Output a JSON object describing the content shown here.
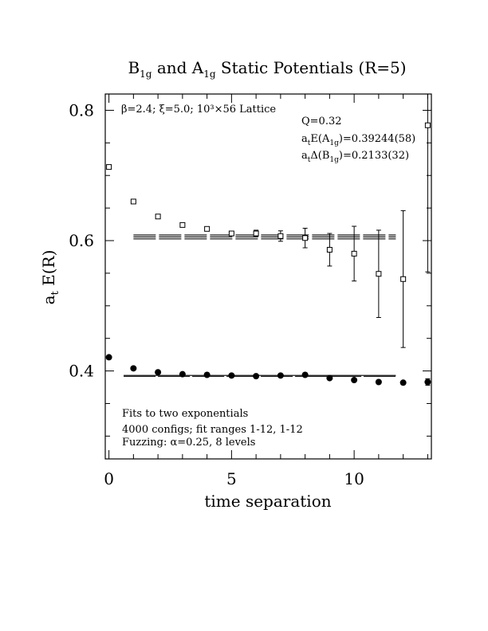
{
  "chart_data": {
    "type": "scatter",
    "title": {
      "part1": "B",
      "sub1": "1g",
      "part2": " and A",
      "sub2": "1g",
      "part3": " Static Potentials (R=5)"
    },
    "xlabel": "time separation",
    "ylabel": {
      "main": "a",
      "sub": "t",
      "rest": " E(R)"
    },
    "xlim": [
      -0.15,
      13.15
    ],
    "ylim": [
      0.265,
      0.825
    ],
    "x_ticks": [
      0,
      5,
      10
    ],
    "y_ticks": [
      0.4,
      0.6,
      0.8
    ],
    "x_tick_labels": [
      "0",
      "5",
      "10"
    ],
    "y_tick_labels": [
      "0.4",
      "0.6",
      "0.8"
    ],
    "series": [
      {
        "marker": "open-square",
        "points": [
          {
            "x": 0,
            "y": 0.713,
            "err": 0.002
          },
          {
            "x": 1,
            "y": 0.66,
            "err": 0.002
          },
          {
            "x": 2,
            "y": 0.637,
            "err": 0.002
          },
          {
            "x": 3,
            "y": 0.624,
            "err": 0.002
          },
          {
            "x": 4,
            "y": 0.618,
            "err": 0.003
          },
          {
            "x": 5,
            "y": 0.611,
            "err": 0.003
          },
          {
            "x": 6,
            "y": 0.611,
            "err": 0.005
          },
          {
            "x": 7,
            "y": 0.607,
            "err": 0.008
          },
          {
            "x": 8,
            "y": 0.604,
            "err": 0.015
          },
          {
            "x": 9,
            "y": 0.586,
            "err": 0.025
          },
          {
            "x": 10,
            "y": 0.58,
            "err": 0.042
          },
          {
            "x": 11,
            "y": 0.549,
            "err": 0.067
          },
          {
            "x": 12,
            "y": 0.541,
            "err": 0.105
          },
          {
            "x": 13,
            "y": 0.777,
            "err": 0.225
          }
        ]
      },
      {
        "marker": "filled-circle",
        "points": [
          {
            "x": 0,
            "y": 0.421,
            "err": 0.001
          },
          {
            "x": 1,
            "y": 0.404,
            "err": 0.001
          },
          {
            "x": 2,
            "y": 0.398,
            "err": 0.001
          },
          {
            "x": 3,
            "y": 0.395,
            "err": 0.001
          },
          {
            "x": 4,
            "y": 0.394,
            "err": 0.001
          },
          {
            "x": 5,
            "y": 0.393,
            "err": 0.001
          },
          {
            "x": 6,
            "y": 0.392,
            "err": 0.001
          },
          {
            "x": 7,
            "y": 0.393,
            "err": 0.001
          },
          {
            "x": 8,
            "y": 0.394,
            "err": 0.002
          },
          {
            "x": 9,
            "y": 0.389,
            "err": 0.002
          },
          {
            "x": 10,
            "y": 0.386,
            "err": 0.002
          },
          {
            "x": 11,
            "y": 0.383,
            "err": 0.002
          },
          {
            "x": 12,
            "y": 0.382,
            "err": 0.002
          },
          {
            "x": 13,
            "y": 0.383,
            "err": 0.005
          }
        ]
      }
    ],
    "fit_bands": [
      {
        "x_range": [
          1,
          11.7
        ],
        "center": 0.6057,
        "half_width": 0.003
      },
      {
        "x_range": [
          0.6,
          11.7
        ],
        "center": 0.3924,
        "half_width": 0.0007
      }
    ],
    "annotations": {
      "lattice": "β=2.4; ξ=5.0; 10³×56 Lattice",
      "q": "Q=0.32",
      "ae": {
        "a": "a",
        "t": "t",
        "mid": "E(A",
        "sub": "1g",
        "tail": ")=0.39244(58)"
      },
      "adelta": {
        "a": "a",
        "t": "t",
        "mid": "Δ(B",
        "sub": "1g",
        "tail": ")=0.2133(32)"
      },
      "fits": "Fits to two exponentials",
      "configs": "4000 configs; fit ranges 1-12, 1-12",
      "fuzzing": "Fuzzing: α=0.25, 8 levels"
    }
  }
}
